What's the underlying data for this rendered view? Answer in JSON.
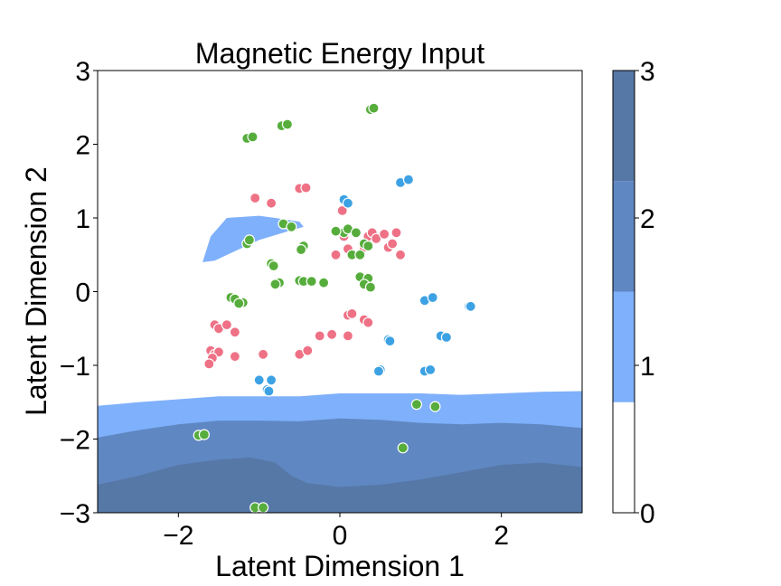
{
  "chart_data": {
    "type": "scatter",
    "title": "Magnetic Energy Input",
    "xlabel": "Latent Dimension 1",
    "ylabel": "Latent Dimension 2",
    "xlim": [
      -3,
      3
    ],
    "ylim": [
      -3,
      3
    ],
    "xticks": [
      -2,
      0,
      2
    ],
    "yticks": [
      -3,
      -2,
      -1,
      0,
      1,
      2,
      3
    ],
    "xtick_labels": [
      "−2",
      "0",
      "2"
    ],
    "ytick_labels": [
      "−3",
      "−2",
      "−1",
      "0",
      "1",
      "2",
      "3"
    ],
    "grid": false,
    "colorbar": {
      "ticks": [
        0,
        1,
        2,
        3
      ],
      "tick_labels": [
        "0",
        "1",
        "2",
        "3"
      ],
      "levels": [
        {
          "from": 0,
          "to": 0.75,
          "color": "#ffffff"
        },
        {
          "from": 0.75,
          "to": 1.5,
          "color": "#7fb0fb"
        },
        {
          "from": 1.5,
          "to": 2.25,
          "color": "#5f87c2"
        },
        {
          "from": 2.25,
          "to": 3,
          "color": "#5678a6"
        }
      ]
    },
    "contour_regions": [
      {
        "level": 1,
        "color": "#7fb0fb",
        "points": [
          [
            -3,
            -1.55
          ],
          [
            -2.5,
            -1.5
          ],
          [
            -2,
            -1.46
          ],
          [
            -1.5,
            -1.42
          ],
          [
            -1,
            -1.42
          ],
          [
            -0.5,
            -1.42
          ],
          [
            0,
            -1.38
          ],
          [
            0.5,
            -1.38
          ],
          [
            1,
            -1.38
          ],
          [
            1.5,
            -1.4
          ],
          [
            2,
            -1.38
          ],
          [
            2.5,
            -1.36
          ],
          [
            3,
            -1.35
          ],
          [
            3,
            -3
          ],
          [
            -3,
            -3
          ]
        ]
      },
      {
        "level": 1,
        "color": "#7fb0fb",
        "points": [
          [
            -1.7,
            0.4
          ],
          [
            -1.6,
            0.75
          ],
          [
            -1.4,
            1.0
          ],
          [
            -1.0,
            1.03
          ],
          [
            -0.8,
            1.0
          ],
          [
            -0.5,
            0.95
          ],
          [
            -0.45,
            0.88
          ],
          [
            -0.7,
            0.8
          ],
          [
            -1.0,
            0.7
          ],
          [
            -1.3,
            0.55
          ],
          [
            -1.55,
            0.42
          ]
        ]
      },
      {
        "level": 2,
        "color": "#5f87c2",
        "points": [
          [
            -3,
            -1.98
          ],
          [
            -2.5,
            -1.88
          ],
          [
            -2,
            -1.8
          ],
          [
            -1.5,
            -1.75
          ],
          [
            -1,
            -1.75
          ],
          [
            -0.5,
            -1.76
          ],
          [
            0,
            -1.72
          ],
          [
            0.5,
            -1.74
          ],
          [
            1,
            -1.78
          ],
          [
            1.5,
            -1.8
          ],
          [
            2,
            -1.78
          ],
          [
            2.5,
            -1.8
          ],
          [
            3,
            -1.85
          ],
          [
            3,
            -3
          ],
          [
            -3,
            -3
          ]
        ]
      },
      {
        "level": 3,
        "color": "#5678a6",
        "points": [
          [
            -3,
            -2.62
          ],
          [
            -2.5,
            -2.5
          ],
          [
            -2,
            -2.35
          ],
          [
            -1.5,
            -2.28
          ],
          [
            -1.1,
            -2.25
          ],
          [
            -0.8,
            -2.32
          ],
          [
            -0.6,
            -2.5
          ],
          [
            -0.4,
            -2.6
          ],
          [
            0,
            -2.65
          ],
          [
            0.5,
            -2.62
          ],
          [
            1,
            -2.55
          ],
          [
            1.5,
            -2.45
          ],
          [
            2,
            -2.35
          ],
          [
            2.5,
            -2.32
          ],
          [
            3,
            -2.38
          ],
          [
            3,
            -3
          ],
          [
            -3,
            -3
          ]
        ]
      }
    ],
    "series": [
      {
        "color": "#ee7185",
        "points": [
          [
            -1.05,
            1.27
          ],
          [
            -0.85,
            1.2
          ],
          [
            -0.5,
            1.4
          ],
          [
            -0.42,
            1.41
          ],
          [
            0.03,
            1.1
          ],
          [
            0.05,
            0.75
          ],
          [
            -0.05,
            0.5
          ],
          [
            0.1,
            0.58
          ],
          [
            0.35,
            0.75
          ],
          [
            0.4,
            0.8
          ],
          [
            0.45,
            0.72
          ],
          [
            0.55,
            0.78
          ],
          [
            0.6,
            0.6
          ],
          [
            0.65,
            0.65
          ],
          [
            0.7,
            0.8
          ],
          [
            0.75,
            0.5
          ],
          [
            0.3,
            0.6
          ],
          [
            -1.55,
            -0.45
          ],
          [
            -1.5,
            -0.5
          ],
          [
            -1.4,
            -0.45
          ],
          [
            -1.3,
            -0.55
          ],
          [
            -1.6,
            -0.8
          ],
          [
            -1.55,
            -0.85
          ],
          [
            -1.5,
            -0.82
          ],
          [
            -1.58,
            -0.9
          ],
          [
            -1.62,
            -0.98
          ],
          [
            -1.3,
            -0.88
          ],
          [
            -0.95,
            -0.85
          ],
          [
            -0.5,
            -0.85
          ],
          [
            -0.4,
            -0.8
          ],
          [
            -0.25,
            -0.6
          ],
          [
            -0.1,
            -0.58
          ],
          [
            0.1,
            -0.6
          ],
          [
            0.1,
            -0.32
          ],
          [
            0.15,
            -0.3
          ],
          [
            0.3,
            -0.38
          ],
          [
            0.35,
            -0.42
          ]
        ]
      },
      {
        "color": "#56ad3c",
        "points": [
          [
            -1.15,
            2.08
          ],
          [
            -1.08,
            2.1
          ],
          [
            -0.72,
            2.25
          ],
          [
            -0.65,
            2.27
          ],
          [
            0.38,
            2.47
          ],
          [
            0.42,
            2.49
          ],
          [
            -0.7,
            0.92
          ],
          [
            -0.6,
            0.88
          ],
          [
            -1.15,
            0.65
          ],
          [
            -1.12,
            0.7
          ],
          [
            -0.45,
            0.62
          ],
          [
            -0.48,
            0.57
          ],
          [
            -0.85,
            0.38
          ],
          [
            -0.82,
            0.35
          ],
          [
            -0.75,
            0.12
          ],
          [
            -0.8,
            0.1
          ],
          [
            -0.5,
            0.15
          ],
          [
            -0.45,
            0.14
          ],
          [
            -0.35,
            0.14
          ],
          [
            -0.2,
            0.12
          ],
          [
            -1.35,
            -0.08
          ],
          [
            -1.3,
            -0.1
          ],
          [
            -1.2,
            -0.15
          ],
          [
            -1.25,
            -0.16
          ],
          [
            0.05,
            0.8
          ],
          [
            0.1,
            0.85
          ],
          [
            0.2,
            0.8
          ],
          [
            0.15,
            0.5
          ],
          [
            0.25,
            0.5
          ],
          [
            0.3,
            0.65
          ],
          [
            0.35,
            0.62
          ],
          [
            0.25,
            0.2
          ],
          [
            0.35,
            0.18
          ],
          [
            0.3,
            0.1
          ],
          [
            0.38,
            0.06
          ],
          [
            -0.05,
            0.82
          ],
          [
            0.95,
            -1.53
          ],
          [
            1.18,
            -1.56
          ],
          [
            -1.75,
            -1.95
          ],
          [
            -1.68,
            -1.94
          ],
          [
            0.78,
            -2.12
          ],
          [
            -1.05,
            -2.93
          ],
          [
            -0.95,
            -2.93
          ]
        ]
      },
      {
        "color": "#3da2e4",
        "points": [
          [
            0.05,
            1.25
          ],
          [
            0.1,
            1.2
          ],
          [
            0.75,
            1.48
          ],
          [
            0.85,
            1.52
          ],
          [
            1.05,
            -0.12
          ],
          [
            1.15,
            -0.08
          ],
          [
            1.6,
            -0.2
          ],
          [
            1.62,
            -0.2
          ],
          [
            1.25,
            -0.6
          ],
          [
            1.32,
            -0.62
          ],
          [
            0.6,
            -0.65
          ],
          [
            0.62,
            -0.67
          ],
          [
            0.5,
            -1.06
          ],
          [
            0.48,
            -1.08
          ],
          [
            1.05,
            -1.08
          ],
          [
            1.12,
            -1.06
          ],
          [
            -1.0,
            -1.2
          ],
          [
            -0.85,
            -1.2
          ],
          [
            -0.9,
            -1.33
          ],
          [
            -0.88,
            -1.35
          ]
        ]
      }
    ]
  }
}
